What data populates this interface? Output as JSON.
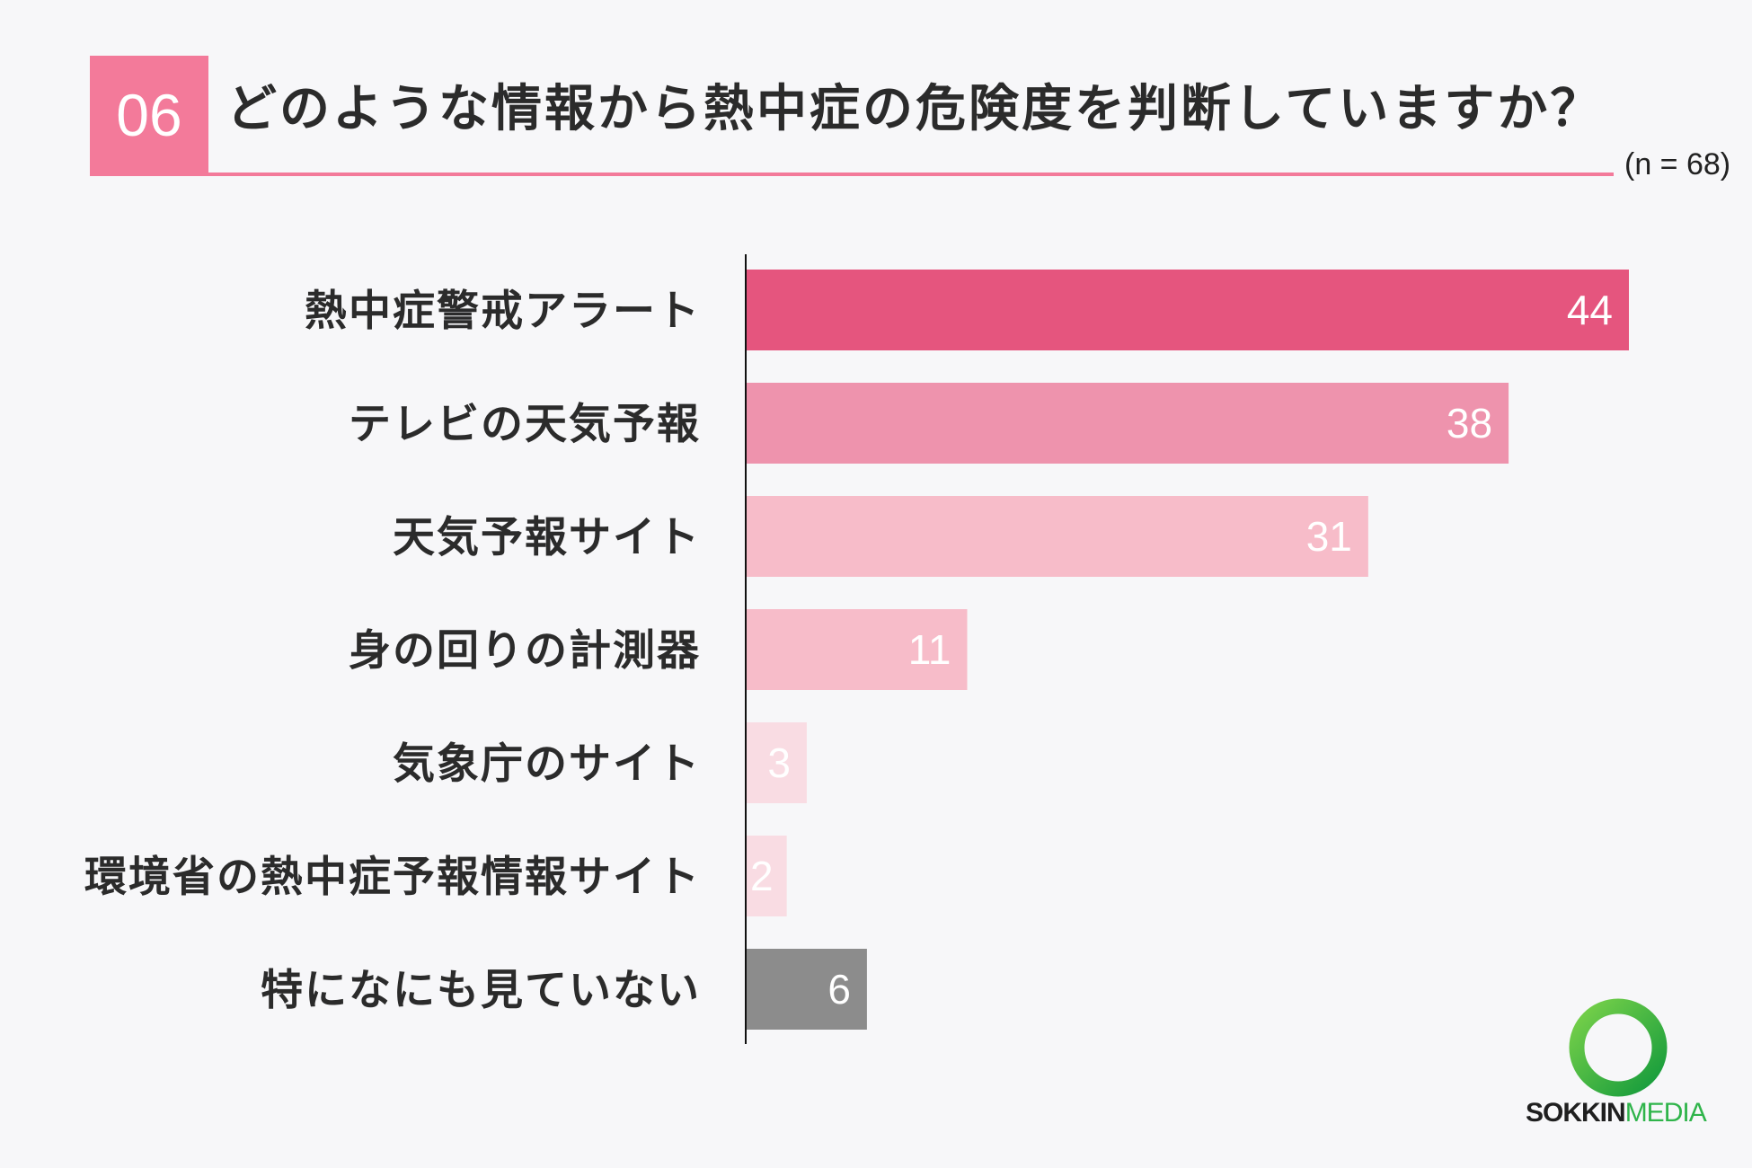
{
  "header": {
    "number": "06",
    "question": "どのような情報から熱中症の危険度を判断していますか？",
    "sample_size": "(n = 68)"
  },
  "colors": {
    "accent": "#f37a9a",
    "logo_green": "#2fb44a"
  },
  "chart_data": {
    "type": "bar",
    "orientation": "horizontal",
    "categories": [
      "熱中症警戒アラート",
      "テレビの天気予報",
      "天気予報サイト",
      "身の回りの計測器",
      "気象庁のサイト",
      "環境省の熱中症予報情報サイト",
      "特になにも見ていない"
    ],
    "values": [
      44,
      38,
      31,
      11,
      3,
      2,
      6
    ],
    "bar_colors": [
      "#e5557e",
      "#ee93ad",
      "#f7bcc9",
      "#f7bcc9",
      "#f9dce3",
      "#f9dce3",
      "#8c8c8c"
    ],
    "xlim": [
      0,
      44
    ],
    "grid": false,
    "legend": "none",
    "data_labels": true
  },
  "logo": {
    "part1": "SOKKIN",
    "part2": "MEDIA"
  }
}
